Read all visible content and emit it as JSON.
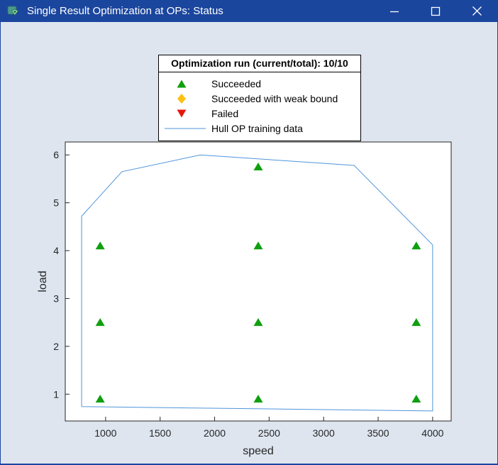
{
  "window": {
    "title": "Single Result Optimization at OPs: Status",
    "controls": {
      "minimize": "minimize",
      "maximize": "maximize",
      "close": "close"
    }
  },
  "colors": {
    "titlebar": "#1b469e",
    "titlebar_text": "#ffffff",
    "window_bg": "#dee5ef",
    "plot_bg": "#ffffff",
    "axis": "#262626",
    "legend_bg": "#ffffff",
    "legend_border": "#000000",
    "succeeded": "#0f9f0f",
    "weak_bound": "#fdc013",
    "failed": "#e8150d",
    "hull_line": "#4f95da"
  },
  "chart_data": {
    "type": "scatter",
    "title": "",
    "xlabel": "speed",
    "ylabel": "load",
    "xlim": [
      630,
      4170
    ],
    "ylim": [
      0.44,
      6.27
    ],
    "xticks": [
      1000,
      1500,
      2000,
      2500,
      3000,
      3500,
      4000
    ],
    "yticks": [
      1,
      2,
      3,
      4,
      5,
      6
    ],
    "grid": false,
    "legend": {
      "title": "Optimization run (current/total): 10/10",
      "position": "above-plot-center"
    },
    "series": [
      {
        "name": "Succeeded",
        "type": "scatter",
        "marker": "triangle-up",
        "color": "#0f9f0f",
        "points": [
          [
            950,
            0.9
          ],
          [
            950,
            2.5
          ],
          [
            950,
            4.1
          ],
          [
            2400,
            0.9
          ],
          [
            2400,
            2.5
          ],
          [
            2400,
            4.1
          ],
          [
            2400,
            5.75
          ],
          [
            3850,
            0.9
          ],
          [
            3850,
            2.5
          ],
          [
            3850,
            4.1
          ]
        ]
      },
      {
        "name": "Succeeded with weak bound",
        "type": "scatter",
        "marker": "diamond",
        "color": "#fdc013",
        "points": []
      },
      {
        "name": "Failed",
        "type": "scatter",
        "marker": "triangle-down",
        "color": "#e8150d",
        "points": []
      },
      {
        "name": "Hull OP training data",
        "type": "line",
        "marker": "line",
        "color": "#4f95da",
        "points": [
          [
            780,
            4.72
          ],
          [
            1150,
            5.65
          ],
          [
            1870,
            6.0
          ],
          [
            3280,
            5.78
          ],
          [
            4000,
            4.12
          ],
          [
            4000,
            0.65
          ],
          [
            780,
            0.74
          ],
          [
            780,
            4.72
          ]
        ]
      }
    ]
  }
}
